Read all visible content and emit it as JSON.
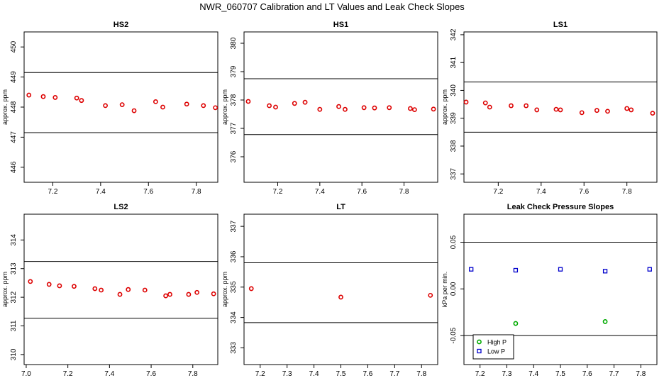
{
  "figure_title": "NWR_060707  Calibration and LT Values and Leak Check Slopes",
  "colors": {
    "points": "#dd0000",
    "high_p": "#00aa00",
    "low_p": "#0000cc",
    "frame": "#000000"
  },
  "chart_data": [
    {
      "type": "scatter",
      "title": "HS2",
      "ylabel": "approx. ppm",
      "xlim": [
        7.08,
        7.89
      ],
      "ylim": [
        445.5,
        450.5
      ],
      "xticks": [
        7.2,
        7.4,
        7.6,
        7.8
      ],
      "yticks": [
        446,
        447,
        448,
        449,
        450
      ],
      "hlines": [
        449.15,
        447.15
      ],
      "series": [
        {
          "color": "#dd0000",
          "x": [
            7.1,
            7.16,
            7.21,
            7.3,
            7.32,
            7.42,
            7.49,
            7.54,
            7.63,
            7.66,
            7.76,
            7.83,
            7.88
          ],
          "y": [
            448.4,
            448.35,
            448.32,
            448.3,
            448.22,
            448.05,
            448.08,
            447.88,
            448.18,
            448.0,
            448.1,
            448.05,
            447.98
          ]
        }
      ]
    },
    {
      "type": "scatter",
      "title": "HS1",
      "ylabel": "approx. ppm",
      "xlim": [
        7.04,
        7.96
      ],
      "ylim": [
        375.1,
        380.4
      ],
      "xticks": [
        7.2,
        7.4,
        7.6,
        7.8
      ],
      "yticks": [
        376,
        377,
        378,
        379,
        380
      ],
      "hlines": [
        378.75,
        376.78
      ],
      "series": [
        {
          "color": "#dd0000",
          "x": [
            7.06,
            7.16,
            7.19,
            7.28,
            7.33,
            7.4,
            7.49,
            7.52,
            7.61,
            7.66,
            7.73,
            7.83,
            7.85,
            7.94
          ],
          "y": [
            377.95,
            377.8,
            377.75,
            377.88,
            377.92,
            377.67,
            377.77,
            377.67,
            377.73,
            377.72,
            377.73,
            377.7,
            377.66,
            377.68
          ]
        }
      ]
    },
    {
      "type": "scatter",
      "title": "LS1",
      "ylabel": "approx. ppm",
      "xlim": [
        7.04,
        7.94
      ],
      "ylim": [
        336.7,
        342.1
      ],
      "xticks": [
        7.2,
        7.4,
        7.6,
        7.8
      ],
      "yticks": [
        337,
        338,
        339,
        340,
        341,
        342
      ],
      "hlines": [
        340.3,
        338.5
      ],
      "series": [
        {
          "color": "#dd0000",
          "x": [
            7.05,
            7.14,
            7.16,
            7.26,
            7.33,
            7.38,
            7.47,
            7.49,
            7.59,
            7.66,
            7.71,
            7.8,
            7.82,
            7.92
          ],
          "y": [
            339.58,
            339.55,
            339.4,
            339.45,
            339.45,
            339.3,
            339.32,
            339.3,
            339.2,
            339.28,
            339.25,
            339.35,
            339.3,
            339.18
          ]
        }
      ]
    },
    {
      "type": "scatter",
      "title": "LS2",
      "ylabel": "approx. ppm",
      "xlim": [
        6.99,
        7.92
      ],
      "ylim": [
        309.65,
        314.9
      ],
      "xticks": [
        7.0,
        7.2,
        7.4,
        7.6,
        7.8
      ],
      "yticks": [
        310,
        311,
        312,
        313,
        314
      ],
      "hlines": [
        313.25,
        311.27
      ],
      "series": [
        {
          "color": "#dd0000",
          "x": [
            7.02,
            7.11,
            7.16,
            7.23,
            7.33,
            7.36,
            7.45,
            7.49,
            7.57,
            7.67,
            7.69,
            7.78,
            7.82,
            7.9
          ],
          "y": [
            312.55,
            312.45,
            312.4,
            312.38,
            312.3,
            312.25,
            312.1,
            312.27,
            312.25,
            312.05,
            312.1,
            312.1,
            312.17,
            312.12
          ]
        }
      ]
    },
    {
      "type": "scatter",
      "title": "LT",
      "ylabel": "approx. ppm",
      "xlim": [
        7.14,
        7.86
      ],
      "ylim": [
        332.45,
        337.4
      ],
      "xticks": [
        7.2,
        7.3,
        7.4,
        7.5,
        7.6,
        7.7,
        7.8
      ],
      "yticks": [
        333,
        334,
        335,
        336,
        337
      ],
      "hlines": [
        335.8,
        333.83
      ],
      "series": [
        {
          "color": "#dd0000",
          "x": [
            7.167,
            7.5,
            7.833
          ],
          "y": [
            334.95,
            334.67,
            334.73
          ]
        }
      ]
    },
    {
      "type": "scatter",
      "title": "Leak Check Pressure Slopes",
      "ylabel": "kPa per min.",
      "xlim": [
        7.14,
        7.86
      ],
      "ylim": [
        -0.081,
        0.08
      ],
      "xticks": [
        7.2,
        7.3,
        7.4,
        7.5,
        7.6,
        7.7,
        7.8
      ],
      "yticks": [
        -0.05,
        0.0,
        0.05
      ],
      "ytick_labels": [
        "-0.05",
        "0.00",
        "0.05"
      ],
      "hlines": [
        0.05,
        -0.05
      ],
      "legend": {
        "position": "bottom-left",
        "entries": [
          "High P",
          "Low P"
        ]
      },
      "series": [
        {
          "name": "High P",
          "color": "#00aa00",
          "x": [
            7.333,
            7.667
          ],
          "y": [
            -0.037,
            -0.035
          ]
        },
        {
          "name": "Low P",
          "color": "#0000cc",
          "x": [
            7.167,
            7.333,
            7.5,
            7.667,
            7.833
          ],
          "y": [
            0.021,
            0.02,
            0.021,
            0.019,
            0.021
          ]
        }
      ]
    }
  ]
}
